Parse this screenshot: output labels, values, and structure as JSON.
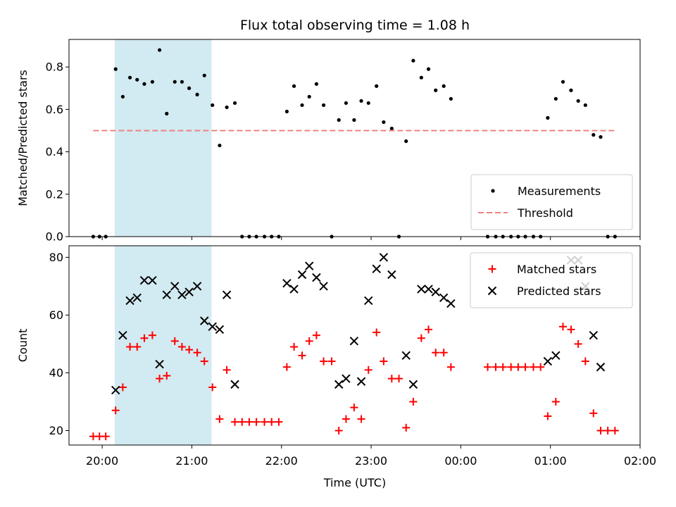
{
  "chart_data": {
    "title": "Flux total observing time = 1.08 h",
    "xlabel": "Time (UTC)",
    "x_ticks": [
      "20:00",
      "21:00",
      "22:00",
      "23:00",
      "00:00",
      "01:00",
      "02:00"
    ],
    "x_tick_hours": [
      20,
      21,
      22,
      23,
      24,
      25,
      26
    ],
    "xlim_hours": [
      19.63,
      26.0
    ],
    "highlight": {
      "start_hour": 20.14,
      "end_hour": 21.22,
      "color": "#add8e6"
    },
    "panels": [
      {
        "type": "scatter",
        "ylabel": "Matched/Predicted stars",
        "ylim": [
          0,
          0.93
        ],
        "y_ticks": [
          0.0,
          0.2,
          0.4,
          0.6,
          0.8
        ],
        "legend": {
          "placement": "lower right"
        },
        "threshold": {
          "name": "Threshold",
          "value": 0.5,
          "x_start_hour": 19.9,
          "x_end_hour": 25.73,
          "color": "#f08080"
        },
        "series": [
          {
            "name": "Measurements",
            "marker": "dot",
            "color": "#000000",
            "x": [
              19.9,
              19.97,
              20.04,
              20.15,
              20.23,
              20.31,
              20.39,
              20.47,
              20.56,
              20.64,
              20.72,
              20.81,
              20.89,
              20.97,
              21.06,
              21.14,
              21.23,
              21.31,
              21.39,
              21.48,
              21.56,
              21.64,
              21.72,
              21.81,
              21.89,
              21.97,
              22.06,
              22.14,
              22.23,
              22.31,
              22.39,
              22.47,
              22.56,
              22.64,
              22.72,
              22.81,
              22.89,
              22.97,
              23.06,
              23.14,
              23.23,
              23.31,
              23.39,
              23.47,
              23.56,
              23.64,
              23.72,
              23.81,
              23.89,
              24.3,
              24.39,
              24.47,
              24.56,
              24.64,
              24.72,
              24.81,
              24.89,
              24.97,
              25.06,
              25.14,
              25.23,
              25.31,
              25.39,
              25.48,
              25.56,
              25.64,
              25.72
            ],
            "y": [
              0.0,
              0.0,
              0.0,
              0.79,
              0.66,
              0.75,
              0.74,
              0.72,
              0.73,
              0.88,
              0.58,
              0.73,
              0.73,
              0.7,
              0.67,
              0.76,
              0.62,
              0.43,
              0.61,
              0.63,
              0.0,
              0.0,
              0.0,
              0.0,
              0.0,
              0.0,
              0.59,
              0.71,
              0.62,
              0.66,
              0.72,
              0.62,
              0.0,
              0.55,
              0.63,
              0.55,
              0.64,
              0.63,
              0.71,
              0.54,
              0.51,
              0.0,
              0.45,
              0.83,
              0.75,
              0.79,
              0.69,
              0.71,
              0.65,
              0.0,
              0.0,
              0.0,
              0.0,
              0.0,
              0.0,
              0.0,
              0.0,
              0.56,
              0.65,
              0.73,
              0.69,
              0.64,
              0.62,
              0.48,
              0.47,
              0.0,
              0.0
            ]
          }
        ]
      },
      {
        "type": "scatter",
        "ylabel": "Count",
        "ylim": [
          15,
          84
        ],
        "y_ticks": [
          20,
          40,
          60,
          80
        ],
        "legend": {
          "placement": "upper right"
        },
        "series": [
          {
            "name": "Matched stars",
            "marker": "plus",
            "color": "#ff0000",
            "x": [
              19.9,
              19.97,
              20.04,
              20.15,
              20.23,
              20.31,
              20.39,
              20.47,
              20.56,
              20.64,
              20.72,
              20.81,
              20.89,
              20.97,
              21.06,
              21.14,
              21.23,
              21.31,
              21.39,
              21.48,
              21.56,
              21.64,
              21.72,
              21.81,
              21.89,
              21.97,
              22.06,
              22.14,
              22.23,
              22.31,
              22.39,
              22.47,
              22.56,
              22.64,
              22.72,
              22.81,
              22.89,
              22.97,
              23.06,
              23.14,
              23.23,
              23.31,
              23.39,
              23.47,
              23.56,
              23.64,
              23.72,
              23.81,
              23.89,
              24.3,
              24.39,
              24.47,
              24.56,
              24.64,
              24.72,
              24.81,
              24.89,
              24.97,
              25.06,
              25.14,
              25.23,
              25.31,
              25.39,
              25.48,
              25.56,
              25.64,
              25.72
            ],
            "y": [
              18,
              18,
              18,
              27,
              35,
              49,
              49,
              52,
              53,
              38,
              39,
              51,
              49,
              48,
              47,
              44,
              35,
              24,
              41,
              23,
              23,
              23,
              23,
              23,
              23,
              23,
              42,
              49,
              46,
              51,
              53,
              44,
              44,
              20,
              24,
              28,
              24,
              41,
              54,
              44,
              38,
              38,
              21,
              30,
              52,
              55,
              47,
              47,
              42,
              42,
              42,
              42,
              42,
              42,
              42,
              42,
              42,
              25,
              30,
              56,
              55,
              50,
              44,
              26,
              20,
              20,
              20
            ]
          },
          {
            "name": "Predicted stars",
            "marker": "x",
            "color": "#000000",
            "x": [
              20.15,
              20.23,
              20.31,
              20.39,
              20.47,
              20.56,
              20.64,
              20.72,
              20.81,
              20.89,
              20.97,
              21.06,
              21.14,
              21.23,
              21.31,
              21.39,
              21.48,
              22.06,
              22.14,
              22.23,
              22.31,
              22.39,
              22.47,
              22.64,
              22.72,
              22.81,
              22.89,
              22.97,
              23.06,
              23.14,
              23.23,
              23.39,
              23.47,
              23.56,
              23.64,
              23.72,
              23.81,
              23.89,
              24.97,
              25.06,
              25.23,
              25.31,
              25.39,
              25.48,
              25.56
            ],
            "y": [
              34,
              53,
              65,
              66,
              72,
              72,
              43,
              67,
              70,
              67,
              68,
              70,
              58,
              56,
              55,
              67,
              36,
              71,
              69,
              74,
              77,
              73,
              70,
              36,
              38,
              51,
              37,
              65,
              76,
              80,
              74,
              46,
              36,
              69,
              69,
              68,
              66,
              64,
              44,
              46,
              79,
              79,
              70,
              53,
              42
            ]
          }
        ]
      }
    ]
  }
}
